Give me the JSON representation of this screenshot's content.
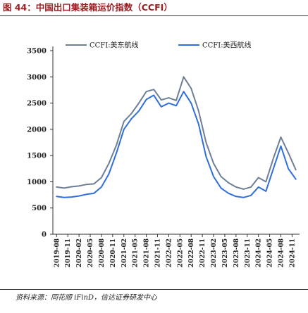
{
  "figure_title": "图 44：中国出口集装箱运价指数（CCFI）",
  "source_note": "资料来源：同花顺 iFinD，信达证券研发中心",
  "colors": {
    "title": "#9e1b1f",
    "series_1": "#6e7f95",
    "series_2": "#2f6fdb",
    "axis": "#333333"
  },
  "chart_data": {
    "type": "line",
    "title": "",
    "xlabel": "",
    "ylabel": "",
    "ylim": [
      0,
      3500
    ],
    "yticks": [
      0,
      500,
      1000,
      1500,
      2000,
      2500,
      3000,
      3500
    ],
    "grid": false,
    "legend_position": "top",
    "x_tick_labels": [
      "2019-08",
      "2019-11",
      "2020-02",
      "2020-05",
      "2020-08",
      "2020-11",
      "2021-02",
      "2021-05",
      "2021-08",
      "2021-11",
      "2022-02",
      "2022-05",
      "2022-08",
      "2022-11",
      "2023-02",
      "2023-05",
      "2023-08",
      "2023-11",
      "2024-02",
      "2024-05",
      "2024-08",
      "2024-11"
    ],
    "x": [
      "2019-08",
      "2019-10",
      "2019-12",
      "2020-02",
      "2020-04",
      "2020-06",
      "2020-08",
      "2020-10",
      "2020-12",
      "2021-02",
      "2021-04",
      "2021-06",
      "2021-08",
      "2021-10",
      "2021-12",
      "2022-02",
      "2022-04",
      "2022-06",
      "2022-08",
      "2022-10",
      "2022-12",
      "2023-02",
      "2023-04",
      "2023-06",
      "2023-08",
      "2023-10",
      "2023-12",
      "2024-02",
      "2024-04",
      "2024-06",
      "2024-08",
      "2024-10",
      "2024-12"
    ],
    "series": [
      {
        "name": "CCFI:美东航线",
        "values": [
          900,
          880,
          905,
          920,
          950,
          960,
          1080,
          1350,
          1700,
          2150,
          2300,
          2500,
          2720,
          2760,
          2560,
          2600,
          2550,
          3000,
          2780,
          2350,
          1750,
          1350,
          1100,
          980,
          900,
          860,
          900,
          1080,
          1000,
          1450,
          1850,
          1550,
          1230
        ]
      },
      {
        "name": "CCFI:美西航线",
        "values": [
          720,
          700,
          710,
          730,
          760,
          780,
          900,
          1150,
          1550,
          2000,
          2200,
          2350,
          2570,
          2650,
          2430,
          2500,
          2450,
          2720,
          2500,
          2100,
          1480,
          1100,
          880,
          780,
          720,
          700,
          740,
          900,
          820,
          1250,
          1680,
          1250,
          1050
        ]
      }
    ]
  }
}
